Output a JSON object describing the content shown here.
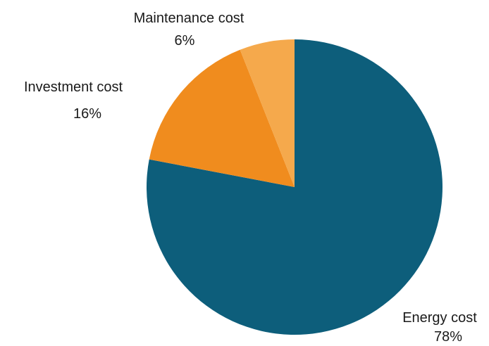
{
  "chart_data": {
    "type": "pie",
    "slices": [
      {
        "label": "Energy cost",
        "value": 78,
        "value_label": "78%",
        "color": "#0d5e7b"
      },
      {
        "label": "Investment cost",
        "value": 16,
        "value_label": "16%",
        "color": "#f08c1e"
      },
      {
        "label": "Maintenance cost",
        "value": 6,
        "value_label": "6%",
        "color": "#f5a94c"
      }
    ],
    "start_angle_deg": 0,
    "direction": "clockwise",
    "legend": "none",
    "labels_outside": true
  }
}
